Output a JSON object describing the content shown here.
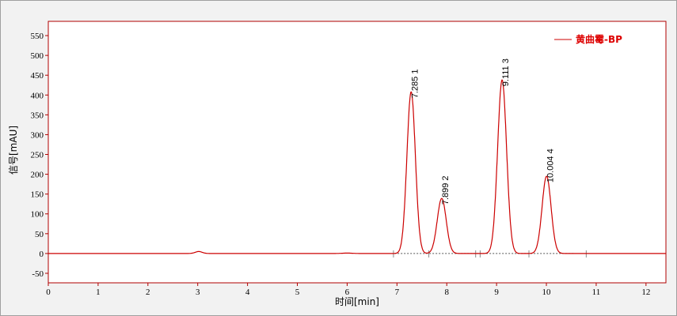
{
  "chart_data": {
    "type": "line",
    "xlabel": "时间[min]",
    "ylabel": "信号[mAU]",
    "xlim": [
      0,
      12.4
    ],
    "ylim": [
      -74,
      586
    ],
    "xticks": [
      0,
      1,
      2,
      3,
      4,
      5,
      6,
      7,
      8,
      9,
      10,
      11,
      12
    ],
    "yticks": [
      -50,
      0,
      50,
      100,
      150,
      200,
      250,
      300,
      350,
      400,
      450,
      500,
      550
    ],
    "grid": false,
    "legend_position": "top-right",
    "series": [
      {
        "name": "黄曲霉-BP",
        "color": "#cc0000"
      }
    ],
    "peaks": [
      {
        "rt": 3.02,
        "height": 5,
        "width": 0.07,
        "label": ""
      },
      {
        "rt": 6.0,
        "height": 1,
        "width": 0.1,
        "label": ""
      },
      {
        "rt": 7.285,
        "height": 408,
        "width": 0.085,
        "label": "7.285  1"
      },
      {
        "rt": 7.899,
        "height": 139,
        "width": 0.09,
        "label": "7.899  2"
      },
      {
        "rt": 9.111,
        "height": 438,
        "width": 0.09,
        "label": "9.111  3"
      },
      {
        "rt": 10.004,
        "height": 195,
        "width": 0.09,
        "label": "10.004  4"
      }
    ]
  }
}
